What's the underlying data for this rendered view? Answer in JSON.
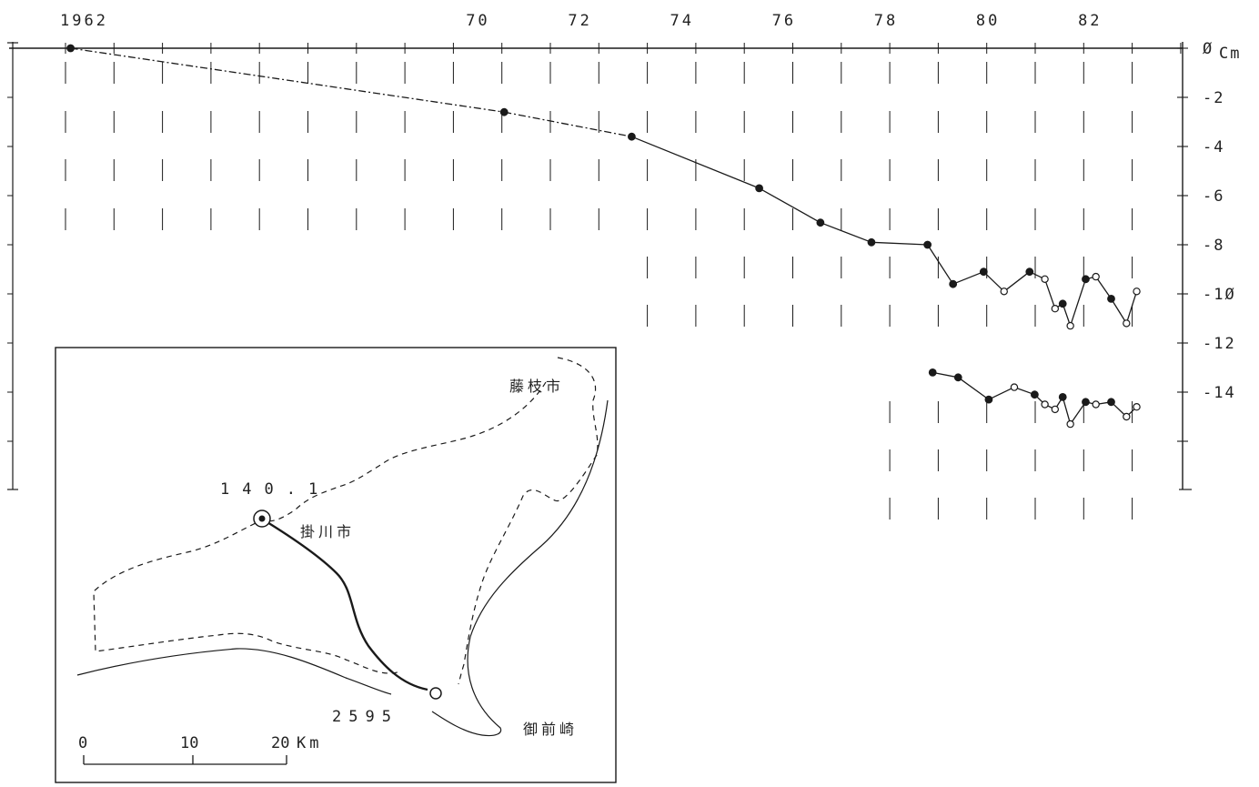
{
  "chart_data": {
    "type": "line",
    "title": "",
    "xlabel": "",
    "ylabel": "",
    "y_unit_label": "Cm",
    "x_tick_labels": [
      {
        "x": 1962,
        "label": "1962"
      },
      {
        "x": 1970,
        "label": "70"
      },
      {
        "x": 1972,
        "label": "72"
      },
      {
        "x": 1974,
        "label": "74"
      },
      {
        "x": 1976,
        "label": "76"
      },
      {
        "x": 1978,
        "label": "78"
      },
      {
        "x": 1980,
        "label": "80"
      },
      {
        "x": 1982,
        "label": "82"
      }
    ],
    "y_tick_labels": [
      {
        "y": 0,
        "label": "0"
      },
      {
        "y": -2,
        "label": "-2"
      },
      {
        "y": -4,
        "label": "-4"
      },
      {
        "y": -6,
        "label": "-6"
      },
      {
        "y": -8,
        "label": "-8"
      },
      {
        "y": -10,
        "label": "-10"
      },
      {
        "y": -12,
        "label": "-12"
      },
      {
        "y": -14,
        "label": "-14"
      }
    ],
    "xlim": [
      1961.9,
      1983.8
    ],
    "ylim": [
      -18,
      0
    ],
    "grid": "vertical dashed",
    "series": [
      {
        "points": [
          {
            "x": 1962.0,
            "y": 0.0,
            "m": "f"
          },
          {
            "x": 1970.5,
            "y": -2.6,
            "m": "f"
          },
          {
            "x": 1973.0,
            "y": -3.6,
            "m": "f"
          },
          {
            "x": 1975.5,
            "y": -5.7,
            "m": "f"
          },
          {
            "x": 1976.7,
            "y": -7.1,
            "m": "f"
          },
          {
            "x": 1977.7,
            "y": -7.9,
            "m": "f"
          },
          {
            "x": 1978.8,
            "y": -8.0,
            "m": "f"
          },
          {
            "x": 1979.3,
            "y": -9.6,
            "m": "f"
          },
          {
            "x": 1979.9,
            "y": -9.1,
            "m": "f"
          },
          {
            "x": 1980.3,
            "y": -9.9,
            "m": "o"
          },
          {
            "x": 1980.8,
            "y": -9.1,
            "m": "f"
          },
          {
            "x": 1981.1,
            "y": -9.4,
            "m": "o"
          },
          {
            "x": 1981.3,
            "y": -10.6,
            "m": "o"
          },
          {
            "x": 1981.45,
            "y": -10.4,
            "m": "f"
          },
          {
            "x": 1981.6,
            "y": -11.3,
            "m": "o"
          },
          {
            "x": 1981.9,
            "y": -9.4,
            "m": "f"
          },
          {
            "x": 1982.1,
            "y": -9.3,
            "m": "o"
          },
          {
            "x": 1982.4,
            "y": -10.2,
            "m": "f"
          },
          {
            "x": 1982.7,
            "y": -11.2,
            "m": "o"
          },
          {
            "x": 1982.9,
            "y": -9.9,
            "m": "o"
          }
        ]
      },
      {
        "points": [
          {
            "x": 1978.9,
            "y": -13.2,
            "m": "f"
          },
          {
            "x": 1979.4,
            "y": -13.4,
            "m": "f"
          },
          {
            "x": 1980.0,
            "y": -14.3,
            "m": "f"
          },
          {
            "x": 1980.5,
            "y": -13.8,
            "m": "o"
          },
          {
            "x": 1980.9,
            "y": -14.1,
            "m": "f"
          },
          {
            "x": 1981.1,
            "y": -14.5,
            "m": "o"
          },
          {
            "x": 1981.3,
            "y": -14.7,
            "m": "o"
          },
          {
            "x": 1981.45,
            "y": -14.2,
            "m": "f"
          },
          {
            "x": 1981.6,
            "y": -15.3,
            "m": "o"
          },
          {
            "x": 1981.9,
            "y": -14.4,
            "m": "f"
          },
          {
            "x": 1982.1,
            "y": -14.5,
            "m": "o"
          },
          {
            "x": 1982.4,
            "y": -14.4,
            "m": "f"
          },
          {
            "x": 1982.7,
            "y": -15.0,
            "m": "o"
          },
          {
            "x": 1982.9,
            "y": -14.6,
            "m": "o"
          }
        ]
      }
    ]
  },
  "inset_map": {
    "labels": {
      "fujieda": "藤枝市",
      "kakegawa": "掛川市",
      "omaezaki": "御前崎",
      "benchmark_start": "140.1",
      "benchmark_end": "2595"
    },
    "scale_bar": {
      "ticks": [
        "0",
        "10",
        "20"
      ],
      "unit": "Km"
    }
  }
}
